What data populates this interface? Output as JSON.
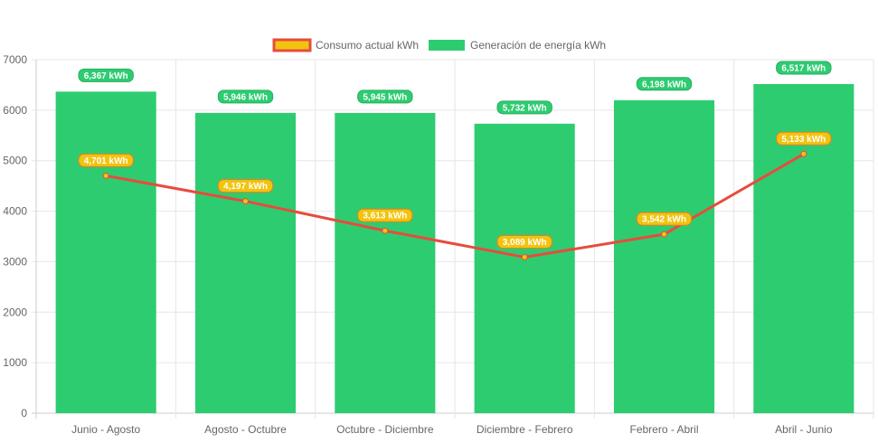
{
  "chart_data": {
    "type": "bar",
    "title": "",
    "xlabel": "",
    "ylabel": "",
    "ylim": [
      0,
      7000
    ],
    "y_ticks": [
      0,
      1000,
      2000,
      3000,
      4000,
      5000,
      6000,
      7000
    ],
    "grid": true,
    "legend_position": "top",
    "categories": [
      "Junio - Agosto",
      "Agosto - Octubre",
      "Octubre - Diciembre",
      "Diciembre - Febrero",
      "Febrero - Abril",
      "Abril - Junio"
    ],
    "series": [
      {
        "name": "Consumo actual kWh",
        "type": "line",
        "color": "#e74c3c",
        "point_fill": "#f1c40f",
        "values": [
          4701,
          4197,
          3613,
          3089,
          3542,
          5133
        ],
        "data_labels": [
          "4,701 kWh",
          "4,197 kWh",
          "3,613 kWh",
          "3,089 kWh",
          "3,542 kWh",
          "5,133 kWh"
        ]
      },
      {
        "name": "Generación de energía kWh",
        "type": "bar",
        "color": "#2ecc71",
        "values": [
          6367,
          5946,
          5945,
          5732,
          6198,
          6517
        ],
        "data_labels": [
          "6,367 kWh",
          "5,946 kWh",
          "5,945 kWh",
          "5,732 kWh",
          "6,198 kWh",
          "6,517 kWh"
        ]
      }
    ]
  }
}
